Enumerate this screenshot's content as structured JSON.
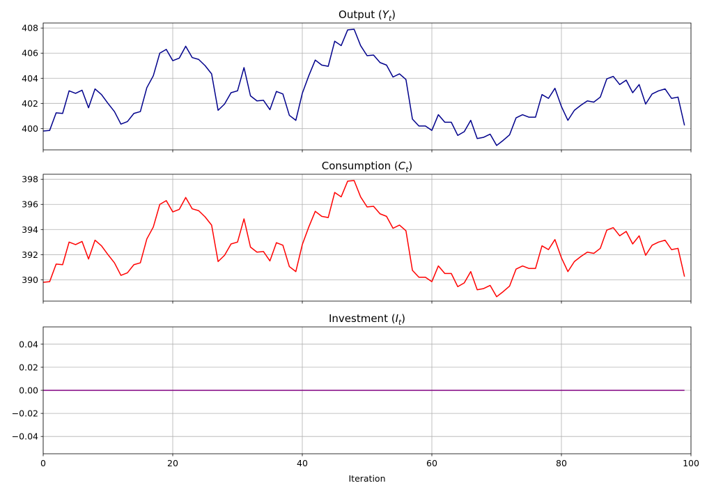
{
  "chart_data": [
    {
      "type": "line",
      "title_text": "Output (",
      "title_math": "Y",
      "title_sub": "t",
      "title_close": ")",
      "xlim": [
        0,
        100
      ],
      "ylim": [
        398.3,
        408.4
      ],
      "yticks": [
        400,
        402,
        404,
        406,
        408
      ],
      "ytick_labels": [
        "400",
        "402",
        "404",
        "406",
        "408"
      ],
      "xticks": [
        0,
        20,
        40,
        60,
        80,
        100
      ],
      "grid": true,
      "color": "#00008b",
      "series": [
        {
          "x": [
            0,
            1,
            2,
            3,
            4,
            5,
            6,
            7,
            8,
            9,
            10,
            11,
            12,
            13,
            14,
            15,
            16,
            17,
            18,
            19,
            20,
            21,
            22,
            23,
            24,
            25,
            26,
            27,
            28,
            29,
            30,
            31,
            32,
            33,
            34,
            35,
            36,
            37,
            38,
            39,
            40,
            41,
            42,
            43,
            44,
            45,
            46,
            47,
            48,
            49,
            50,
            51,
            52,
            53,
            54,
            55,
            56,
            57,
            58,
            59,
            60,
            61,
            62,
            63,
            64,
            65,
            66,
            67,
            68,
            69,
            70,
            71,
            72,
            73,
            74,
            75,
            76,
            77,
            78,
            79,
            80,
            81,
            82,
            83,
            84,
            85,
            86,
            87,
            88,
            89,
            90,
            91,
            92,
            93,
            94,
            95,
            96,
            97,
            98,
            99
          ],
          "values": [
            399.8,
            399.85,
            401.25,
            401.2,
            403.0,
            402.8,
            403.05,
            401.65,
            403.15,
            402.7,
            402.0,
            401.35,
            400.35,
            400.55,
            401.2,
            401.35,
            403.25,
            404.2,
            406.0,
            406.3,
            405.4,
            405.6,
            406.55,
            405.65,
            405.5,
            405.0,
            404.35,
            401.45,
            401.95,
            402.85,
            403.0,
            404.85,
            402.6,
            402.2,
            402.25,
            401.5,
            402.95,
            402.75,
            401.05,
            400.65,
            402.8,
            404.2,
            405.45,
            405.05,
            404.95,
            406.95,
            406.6,
            407.85,
            407.9,
            406.6,
            405.8,
            405.85,
            405.25,
            405.05,
            404.1,
            404.35,
            403.9,
            400.75,
            400.2,
            400.2,
            399.85,
            401.1,
            400.5,
            400.5,
            399.45,
            399.75,
            400.65,
            399.2,
            399.3,
            399.55,
            398.65,
            399.05,
            399.5,
            400.85,
            401.1,
            400.9,
            400.9,
            402.7,
            402.4,
            403.2,
            401.75,
            400.65,
            401.45,
            401.85,
            402.2,
            402.1,
            402.5,
            403.95,
            404.15,
            403.5,
            403.85,
            402.85,
            403.5,
            401.95,
            402.75,
            403.0,
            403.15,
            402.4,
            402.5,
            400.25
          ]
        }
      ]
    },
    {
      "type": "line",
      "title_text": "Consumption (",
      "title_math": "C",
      "title_sub": "t",
      "title_close": ")",
      "xlim": [
        0,
        100
      ],
      "ylim": [
        388.3,
        398.4
      ],
      "yticks": [
        390,
        392,
        394,
        396,
        398
      ],
      "ytick_labels": [
        "390",
        "392",
        "394",
        "396",
        "398"
      ],
      "xticks": [
        0,
        20,
        40,
        60,
        80,
        100
      ],
      "grid": true,
      "color": "#ff0000",
      "series": [
        {
          "x": [
            0,
            1,
            2,
            3,
            4,
            5,
            6,
            7,
            8,
            9,
            10,
            11,
            12,
            13,
            14,
            15,
            16,
            17,
            18,
            19,
            20,
            21,
            22,
            23,
            24,
            25,
            26,
            27,
            28,
            29,
            30,
            31,
            32,
            33,
            34,
            35,
            36,
            37,
            38,
            39,
            40,
            41,
            42,
            43,
            44,
            45,
            46,
            47,
            48,
            49,
            50,
            51,
            52,
            53,
            54,
            55,
            56,
            57,
            58,
            59,
            60,
            61,
            62,
            63,
            64,
            65,
            66,
            67,
            68,
            69,
            70,
            71,
            72,
            73,
            74,
            75,
            76,
            77,
            78,
            79,
            80,
            81,
            82,
            83,
            84,
            85,
            86,
            87,
            88,
            89,
            90,
            91,
            92,
            93,
            94,
            95,
            96,
            97,
            98,
            99
          ],
          "values": [
            389.8,
            389.85,
            391.25,
            391.2,
            393.0,
            392.8,
            393.05,
            391.65,
            393.15,
            392.7,
            392.0,
            391.35,
            390.35,
            390.55,
            391.2,
            391.35,
            393.25,
            394.2,
            396.0,
            396.3,
            395.4,
            395.6,
            396.55,
            395.65,
            395.5,
            395.0,
            394.35,
            391.45,
            391.95,
            392.85,
            393.0,
            394.85,
            392.6,
            392.2,
            392.25,
            391.5,
            392.95,
            392.75,
            391.05,
            390.65,
            392.8,
            394.2,
            395.45,
            395.05,
            394.95,
            396.95,
            396.6,
            397.85,
            397.9,
            396.6,
            395.8,
            395.85,
            395.25,
            395.05,
            394.1,
            394.35,
            393.9,
            390.75,
            390.2,
            390.2,
            389.85,
            391.1,
            390.5,
            390.5,
            389.45,
            389.75,
            390.65,
            389.2,
            389.3,
            389.55,
            388.65,
            389.05,
            389.5,
            390.85,
            391.1,
            390.9,
            390.9,
            392.7,
            392.4,
            393.2,
            391.75,
            390.65,
            391.45,
            391.85,
            392.2,
            392.1,
            392.5,
            393.95,
            394.15,
            393.5,
            393.85,
            392.85,
            393.5,
            391.95,
            392.75,
            393.0,
            393.15,
            392.4,
            392.5,
            390.25
          ]
        }
      ]
    },
    {
      "type": "line",
      "title_text": "Investment (",
      "title_math": "I",
      "title_sub": "t",
      "title_close": ")",
      "xlim": [
        0,
        100
      ],
      "ylim": [
        -0.055,
        0.055
      ],
      "yticks": [
        -0.04,
        -0.02,
        0.0,
        0.02,
        0.04
      ],
      "ytick_labels": [
        "−0.04",
        "−0.02",
        "0.00",
        "0.02",
        "0.04"
      ],
      "xticks": [
        0,
        20,
        40,
        60,
        80,
        100
      ],
      "xtick_labels": [
        "0",
        "20",
        "40",
        "60",
        "80",
        "100"
      ],
      "xlabel": "Iteration",
      "grid": true,
      "color": "#800080",
      "series": [
        {
          "x": [
            0,
            99
          ],
          "values": [
            0.0,
            0.0
          ]
        }
      ]
    }
  ]
}
